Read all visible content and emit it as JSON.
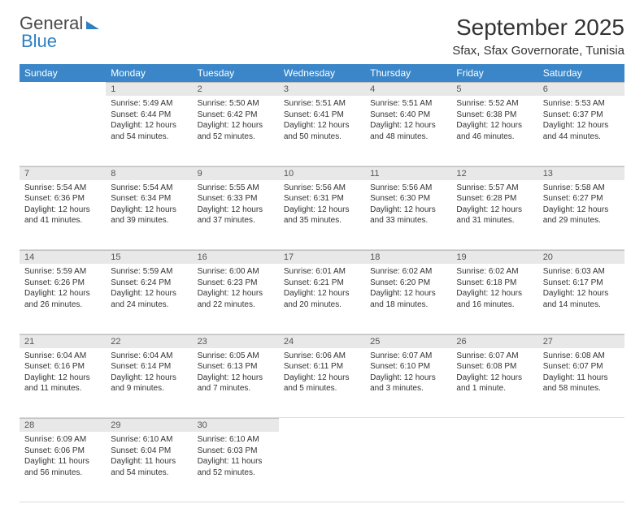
{
  "logo": {
    "text1": "General",
    "text2": "Blue"
  },
  "title": "September 2025",
  "location": "Sfax, Sfax Governorate, Tunisia",
  "colors": {
    "header_bg": "#3a86c8",
    "header_text": "#ffffff",
    "daynum_bg": "#e8e8e8",
    "daynum_border": "#bfbfbf",
    "body_text": "#333333",
    "logo_gray": "#4a4a4a",
    "logo_blue": "#2f7fc1"
  },
  "weekdays": [
    "Sunday",
    "Monday",
    "Tuesday",
    "Wednesday",
    "Thursday",
    "Friday",
    "Saturday"
  ],
  "weeks": [
    [
      null,
      {
        "n": "1",
        "sr": "5:49 AM",
        "ss": "6:44 PM",
        "dl": "12 hours and 54 minutes."
      },
      {
        "n": "2",
        "sr": "5:50 AM",
        "ss": "6:42 PM",
        "dl": "12 hours and 52 minutes."
      },
      {
        "n": "3",
        "sr": "5:51 AM",
        "ss": "6:41 PM",
        "dl": "12 hours and 50 minutes."
      },
      {
        "n": "4",
        "sr": "5:51 AM",
        "ss": "6:40 PM",
        "dl": "12 hours and 48 minutes."
      },
      {
        "n": "5",
        "sr": "5:52 AM",
        "ss": "6:38 PM",
        "dl": "12 hours and 46 minutes."
      },
      {
        "n": "6",
        "sr": "5:53 AM",
        "ss": "6:37 PM",
        "dl": "12 hours and 44 minutes."
      }
    ],
    [
      {
        "n": "7",
        "sr": "5:54 AM",
        "ss": "6:36 PM",
        "dl": "12 hours and 41 minutes."
      },
      {
        "n": "8",
        "sr": "5:54 AM",
        "ss": "6:34 PM",
        "dl": "12 hours and 39 minutes."
      },
      {
        "n": "9",
        "sr": "5:55 AM",
        "ss": "6:33 PM",
        "dl": "12 hours and 37 minutes."
      },
      {
        "n": "10",
        "sr": "5:56 AM",
        "ss": "6:31 PM",
        "dl": "12 hours and 35 minutes."
      },
      {
        "n": "11",
        "sr": "5:56 AM",
        "ss": "6:30 PM",
        "dl": "12 hours and 33 minutes."
      },
      {
        "n": "12",
        "sr": "5:57 AM",
        "ss": "6:28 PM",
        "dl": "12 hours and 31 minutes."
      },
      {
        "n": "13",
        "sr": "5:58 AM",
        "ss": "6:27 PM",
        "dl": "12 hours and 29 minutes."
      }
    ],
    [
      {
        "n": "14",
        "sr": "5:59 AM",
        "ss": "6:26 PM",
        "dl": "12 hours and 26 minutes."
      },
      {
        "n": "15",
        "sr": "5:59 AM",
        "ss": "6:24 PM",
        "dl": "12 hours and 24 minutes."
      },
      {
        "n": "16",
        "sr": "6:00 AM",
        "ss": "6:23 PM",
        "dl": "12 hours and 22 minutes."
      },
      {
        "n": "17",
        "sr": "6:01 AM",
        "ss": "6:21 PM",
        "dl": "12 hours and 20 minutes."
      },
      {
        "n": "18",
        "sr": "6:02 AM",
        "ss": "6:20 PM",
        "dl": "12 hours and 18 minutes."
      },
      {
        "n": "19",
        "sr": "6:02 AM",
        "ss": "6:18 PM",
        "dl": "12 hours and 16 minutes."
      },
      {
        "n": "20",
        "sr": "6:03 AM",
        "ss": "6:17 PM",
        "dl": "12 hours and 14 minutes."
      }
    ],
    [
      {
        "n": "21",
        "sr": "6:04 AM",
        "ss": "6:16 PM",
        "dl": "12 hours and 11 minutes."
      },
      {
        "n": "22",
        "sr": "6:04 AM",
        "ss": "6:14 PM",
        "dl": "12 hours and 9 minutes."
      },
      {
        "n": "23",
        "sr": "6:05 AM",
        "ss": "6:13 PM",
        "dl": "12 hours and 7 minutes."
      },
      {
        "n": "24",
        "sr": "6:06 AM",
        "ss": "6:11 PM",
        "dl": "12 hours and 5 minutes."
      },
      {
        "n": "25",
        "sr": "6:07 AM",
        "ss": "6:10 PM",
        "dl": "12 hours and 3 minutes."
      },
      {
        "n": "26",
        "sr": "6:07 AM",
        "ss": "6:08 PM",
        "dl": "12 hours and 1 minute."
      },
      {
        "n": "27",
        "sr": "6:08 AM",
        "ss": "6:07 PM",
        "dl": "11 hours and 58 minutes."
      }
    ],
    [
      {
        "n": "28",
        "sr": "6:09 AM",
        "ss": "6:06 PM",
        "dl": "11 hours and 56 minutes."
      },
      {
        "n": "29",
        "sr": "6:10 AM",
        "ss": "6:04 PM",
        "dl": "11 hours and 54 minutes."
      },
      {
        "n": "30",
        "sr": "6:10 AM",
        "ss": "6:03 PM",
        "dl": "11 hours and 52 minutes."
      },
      null,
      null,
      null,
      null
    ]
  ],
  "labels": {
    "sunrise": "Sunrise:",
    "sunset": "Sunset:",
    "daylight": "Daylight:"
  }
}
